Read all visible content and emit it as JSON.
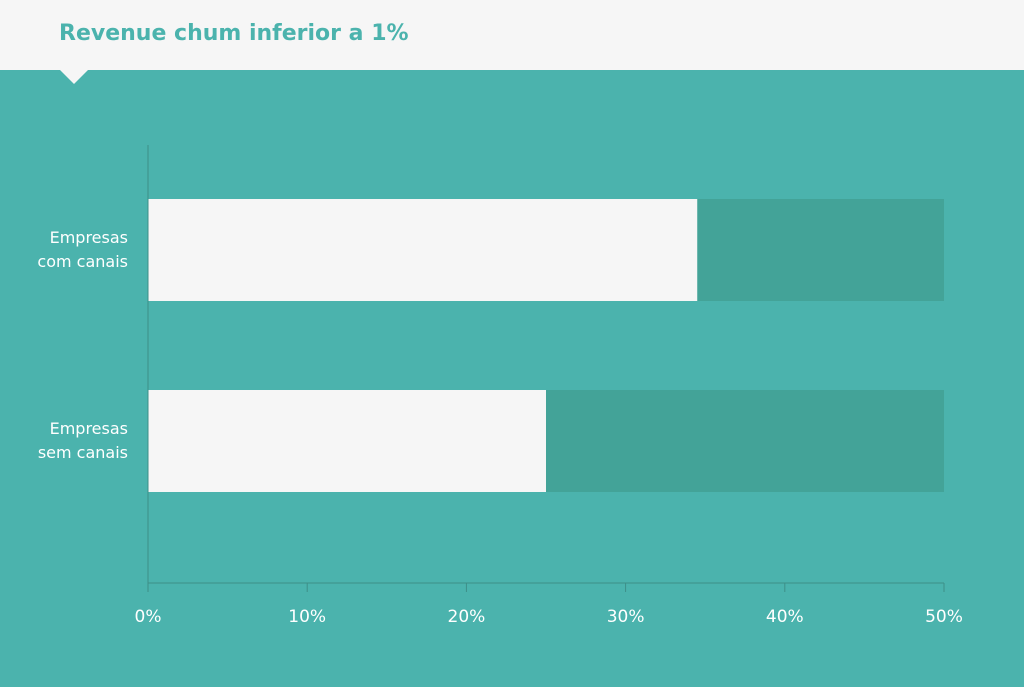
{
  "chart_data": {
    "type": "bar",
    "orientation": "horizontal",
    "title": "Revenue chum inferior a 1%",
    "categories": [
      "Empresas com canais",
      "Empresas sem canais"
    ],
    "values": [
      34.5,
      25
    ],
    "color": "#f6f6f6",
    "xlim": [
      0,
      50
    ],
    "xticks": [
      {
        "value": 0,
        "label": "0%"
      },
      {
        "value": 10,
        "label": "10%"
      },
      {
        "value": 20,
        "label": "20%"
      },
      {
        "value": 30,
        "label": "30%"
      },
      {
        "value": 40,
        "label": "40%"
      },
      {
        "value": 50,
        "label": "50%"
      }
    ],
    "grid": false
  }
}
